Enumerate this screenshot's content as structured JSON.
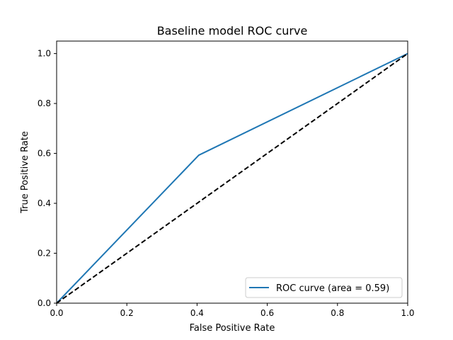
{
  "chart_data": {
    "type": "line",
    "title": "Baseline model ROC curve",
    "xlabel": "False Positive Rate",
    "ylabel": "True Positive Rate",
    "xlim": [
      0.0,
      1.0
    ],
    "ylim": [
      0.0,
      1.05
    ],
    "xticks": [
      0.0,
      0.2,
      0.4,
      0.6,
      0.8,
      1.0
    ],
    "yticks": [
      0.0,
      0.2,
      0.4,
      0.6,
      0.8,
      1.0
    ],
    "xtick_labels": [
      "0.0",
      "0.2",
      "0.4",
      "0.6",
      "0.8",
      "1.0"
    ],
    "ytick_labels": [
      "0.0",
      "0.2",
      "0.4",
      "0.6",
      "0.8",
      "1.0"
    ],
    "grid": false,
    "legend_position": "lower-right",
    "series": [
      {
        "name": "ROC curve (area = 0.59)",
        "color": "#1f77b4",
        "style": "solid",
        "x": [
          0.0,
          0.405,
          1.0
        ],
        "y": [
          0.0,
          0.593,
          1.0
        ]
      },
      {
        "color": "#000000",
        "style": "dashed",
        "x": [
          0.0,
          1.0
        ],
        "y": [
          0.0,
          1.0
        ]
      }
    ]
  }
}
